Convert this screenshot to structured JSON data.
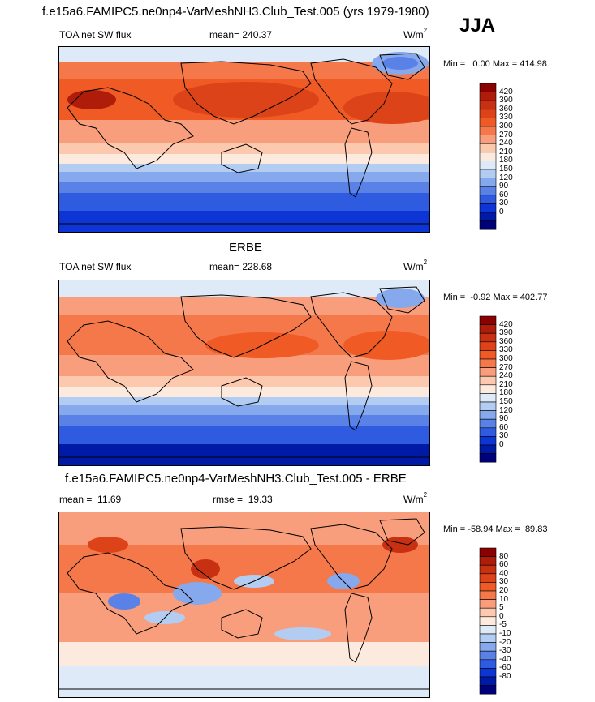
{
  "header": {
    "title": "f.e15a6.FAMIPC5.ne0np4-VarMeshNH3.Club_Test.005 (yrs 1979-1980)",
    "season": "JJA"
  },
  "chart_data": [
    {
      "type": "heatmap",
      "title": "",
      "variable": "TOA net SW flux",
      "stat_label": "mean=",
      "stat_value": "240.37",
      "units_base": "W/m",
      "units_exp": "2",
      "min_label": "Min =",
      "min": "0.00",
      "max_label": "Max =",
      "max": "414.98",
      "levels": [
        "420",
        "390",
        "360",
        "330",
        "300",
        "270",
        "240",
        "210",
        "180",
        "150",
        "120",
        "90",
        "60",
        "30",
        "0"
      ],
      "colors": [
        "#8b0000",
        "#b01c0a",
        "#c83012",
        "#dd4318",
        "#ef5a25",
        "#f5784a",
        "#f99e7c",
        "#fcc8ae",
        "#fdeadf",
        "#deeaf7",
        "#b3ccf2",
        "#86a8ec",
        "#5a82e6",
        "#2f5be0",
        "#0d35d6",
        "#001aa8",
        "#00007a"
      ]
    },
    {
      "type": "heatmap",
      "title": "ERBE",
      "variable": "TOA net SW flux",
      "stat_label": "mean=",
      "stat_value": "228.68",
      "units_base": "W/m",
      "units_exp": "2",
      "min_label": "Min =",
      "min": "-0.92",
      "max_label": "Max =",
      "max": "402.77",
      "levels": [
        "420",
        "390",
        "360",
        "330",
        "300",
        "270",
        "240",
        "210",
        "180",
        "150",
        "120",
        "90",
        "60",
        "30",
        "0"
      ],
      "colors": [
        "#8b0000",
        "#b01c0a",
        "#c83012",
        "#dd4318",
        "#ef5a25",
        "#f5784a",
        "#f99e7c",
        "#fcc8ae",
        "#fdeadf",
        "#deeaf7",
        "#b3ccf2",
        "#86a8ec",
        "#5a82e6",
        "#2f5be0",
        "#0d35d6",
        "#001aa8",
        "#00007a"
      ]
    },
    {
      "type": "heatmap",
      "title": "f.e15a6.FAMIPC5.ne0np4-VarMeshNH3.Club_Test.005 - ERBE",
      "stat1_label": "mean =",
      "stat1_value": "11.69",
      "stat2_label": "rmse =",
      "stat2_value": "19.33",
      "units_base": "W/m",
      "units_exp": "2",
      "min_label": "Min =",
      "min": "-58.94",
      "max_label": "Max =",
      "max": "89.83",
      "levels": [
        "80",
        "60",
        "40",
        "30",
        "20",
        "10",
        "5",
        "0",
        "-5",
        "-10",
        "-20",
        "-30",
        "-40",
        "-60",
        "-80"
      ],
      "colors": [
        "#8b0000",
        "#b01c0a",
        "#c83012",
        "#dd4318",
        "#ef5a25",
        "#f5784a",
        "#f99e7c",
        "#fcc8ae",
        "#fdeadf",
        "#deeaf7",
        "#b3ccf2",
        "#86a8ec",
        "#5a82e6",
        "#2f5be0",
        "#0d35d6",
        "#001aa8",
        "#00007a"
      ]
    }
  ]
}
